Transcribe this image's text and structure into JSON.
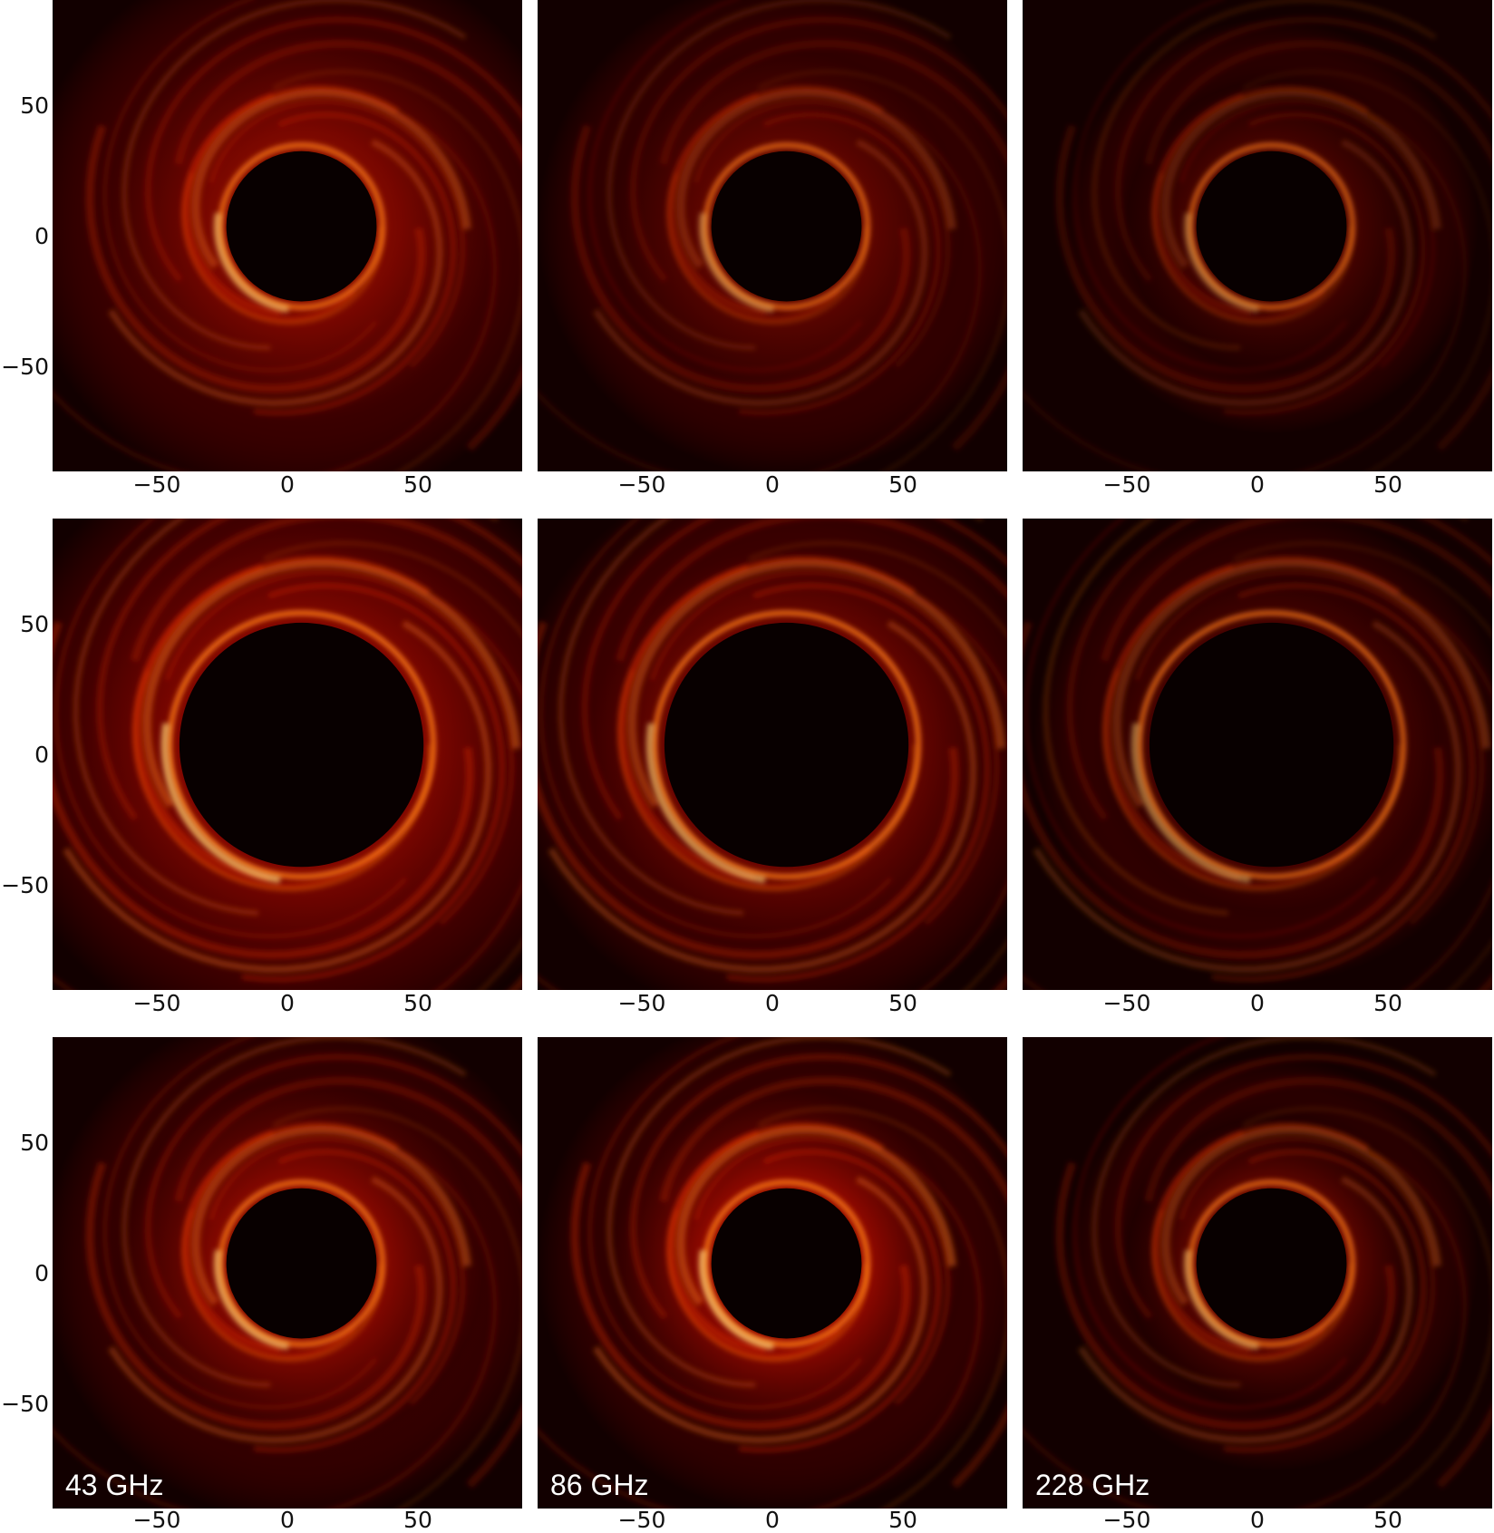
{
  "figure": {
    "tick_labels": [
      "−50",
      "0",
      "50"
    ],
    "y_tick_labels": [
      "50",
      "0",
      "−50"
    ],
    "column_labels": [
      "43 GHz",
      "86 GHz",
      "228 GHz"
    ],
    "colormap": [
      "#120000",
      "#5a0000",
      "#a80a00",
      "#e52a00",
      "#ff7a1a",
      "#ffd070"
    ],
    "panels": [
      {
        "row": 1,
        "column": 1,
        "brightness": 0.75,
        "shadow_radius": 0.16,
        "outer_glow": 0.55
      },
      {
        "row": 1,
        "column": 2,
        "brightness": 0.55,
        "shadow_radius": 0.16,
        "outer_glow": 0.4
      },
      {
        "row": 1,
        "column": 3,
        "brightness": 0.45,
        "shadow_radius": 0.16,
        "outer_glow": 0.2
      },
      {
        "row": 2,
        "column": 1,
        "brightness": 0.9,
        "shadow_radius": 0.26,
        "outer_glow": 0.7
      },
      {
        "row": 2,
        "column": 2,
        "brightness": 0.8,
        "shadow_radius": 0.26,
        "outer_glow": 0.55
      },
      {
        "row": 2,
        "column": 3,
        "brightness": 0.6,
        "shadow_radius": 0.26,
        "outer_glow": 0.35
      },
      {
        "row": 3,
        "column": 1,
        "brightness": 0.8,
        "shadow_radius": 0.16,
        "outer_glow": 0.45
      },
      {
        "row": 3,
        "column": 2,
        "brightness": 0.9,
        "shadow_radius": 0.16,
        "outer_glow": 0.4
      },
      {
        "row": 3,
        "column": 3,
        "brightness": 0.65,
        "shadow_radius": 0.16,
        "outer_glow": 0.2
      }
    ]
  }
}
